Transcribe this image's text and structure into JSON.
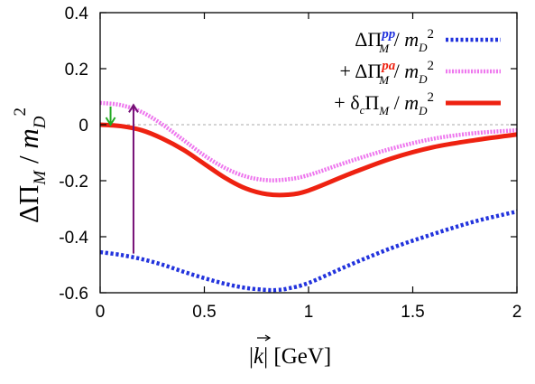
{
  "chart_data": {
    "type": "line",
    "xlabel": "|k| [GeV]",
    "ylabel": "ΔΠ_M / m_D^2",
    "xlim": [
      0,
      2
    ],
    "ylim": [
      -0.6,
      0.4
    ],
    "x_ticks": [
      "0",
      "0.5",
      "1",
      "1.5",
      "2"
    ],
    "y_ticks": [
      "0.4",
      "0.2",
      "0",
      "-0.2",
      "-0.4",
      "-0.6"
    ],
    "zero_line": true,
    "legend_position": "top-right",
    "series": [
      {
        "name": "ΔΠ_M^pp / m_D^2",
        "color": "#2233dd",
        "style": "dotted",
        "x": [
          0,
          0.1,
          0.2,
          0.3,
          0.4,
          0.5,
          0.6,
          0.7,
          0.8,
          0.85,
          0.9,
          1.0,
          1.2,
          1.4,
          1.6,
          1.8,
          2.0
        ],
        "y": [
          -0.455,
          -0.465,
          -0.48,
          -0.5,
          -0.525,
          -0.548,
          -0.568,
          -0.583,
          -0.59,
          -0.59,
          -0.585,
          -0.565,
          -0.5,
          -0.44,
          -0.39,
          -0.345,
          -0.31
        ]
      },
      {
        "name": "+ ΔΠ_M^pa / m_D^2",
        "color": "#ee77ee",
        "style": "dotted",
        "x": [
          0,
          0.1,
          0.2,
          0.3,
          0.4,
          0.5,
          0.6,
          0.7,
          0.8,
          0.9,
          1.0,
          1.2,
          1.4,
          1.6,
          1.8,
          2.0
        ],
        "y": [
          0.078,
          0.07,
          0.045,
          0.0,
          -0.055,
          -0.11,
          -0.155,
          -0.185,
          -0.198,
          -0.195,
          -0.18,
          -0.13,
          -0.085,
          -0.05,
          -0.03,
          -0.02
        ]
      },
      {
        "name": "+ δ_c Π_M / m_D^2",
        "color": "#ee2211",
        "style": "solid",
        "x": [
          0,
          0.1,
          0.2,
          0.3,
          0.4,
          0.5,
          0.6,
          0.7,
          0.8,
          0.9,
          1.0,
          1.2,
          1.4,
          1.6,
          1.8,
          2.0
        ],
        "y": [
          0.0,
          -0.005,
          -0.02,
          -0.05,
          -0.09,
          -0.14,
          -0.19,
          -0.228,
          -0.248,
          -0.25,
          -0.235,
          -0.175,
          -0.12,
          -0.08,
          -0.055,
          -0.035
        ]
      }
    ],
    "annotations": [
      {
        "type": "arrow",
        "color": "#22aa22",
        "x": 0.05,
        "y_from": 0.065,
        "y_to": 0.0
      },
      {
        "type": "arrow",
        "color": "#771177",
        "x": 0.16,
        "y_from": -0.46,
        "y_to": 0.07
      }
    ]
  }
}
